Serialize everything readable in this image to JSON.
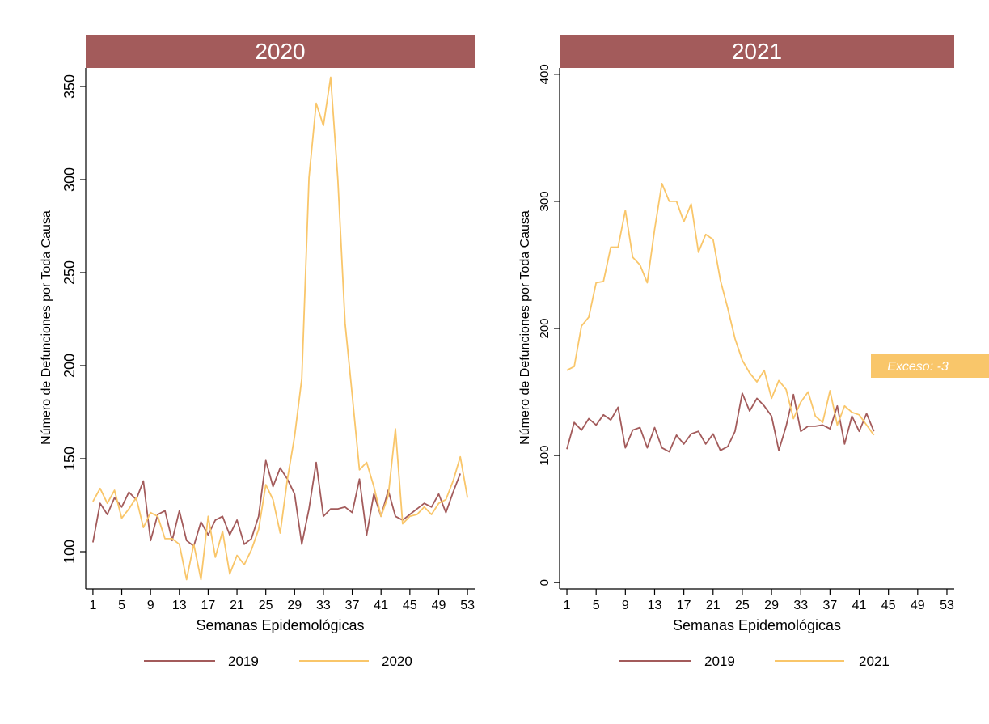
{
  "colors": {
    "banner": "#a35b5b",
    "series_2019": "#a35b5b",
    "series_current": "#f9c66a",
    "exceso_box": "#f9c66a",
    "banner_text": "#ffffff"
  },
  "chart_data": [
    {
      "type": "line",
      "title": "2020",
      "xlabel": "Semanas Epidemológicas",
      "ylabel": "Número de Defunciones por Toda Causa",
      "xlim": [
        0,
        54
      ],
      "ylim": [
        80,
        360
      ],
      "xticks": [
        1,
        5,
        9,
        13,
        17,
        21,
        25,
        29,
        33,
        37,
        41,
        45,
        49,
        53
      ],
      "yticks": [
        100,
        150,
        200,
        250,
        300,
        350
      ],
      "legend_position": "bottom",
      "series": [
        {
          "name": "2019",
          "color_key": "series_2019",
          "x": [
            1,
            2,
            3,
            4,
            5,
            6,
            7,
            8,
            9,
            10,
            11,
            12,
            13,
            14,
            15,
            16,
            17,
            18,
            19,
            20,
            21,
            22,
            23,
            24,
            25,
            26,
            27,
            28,
            29,
            30,
            31,
            32,
            33,
            34,
            35,
            36,
            37,
            38,
            39,
            40,
            41,
            42,
            43,
            44,
            45,
            46,
            47,
            48,
            49,
            50,
            51,
            52
          ],
          "values": [
            105,
            126,
            120,
            129,
            124,
            132,
            128,
            138,
            106,
            120,
            122,
            106,
            122,
            106,
            103,
            116,
            109,
            117,
            119,
            109,
            117,
            104,
            107,
            119,
            149,
            135,
            145,
            139,
            131,
            104,
            123,
            148,
            119,
            123,
            123,
            124,
            121,
            139,
            109,
            131,
            119,
            133,
            119,
            117,
            120,
            123,
            126,
            124,
            131,
            121,
            132,
            142
          ]
        },
        {
          "name": "2020",
          "color_key": "series_current",
          "x": [
            1,
            2,
            3,
            4,
            5,
            6,
            7,
            8,
            9,
            10,
            11,
            12,
            13,
            14,
            15,
            16,
            17,
            18,
            19,
            20,
            21,
            22,
            23,
            24,
            25,
            26,
            27,
            28,
            29,
            30,
            31,
            32,
            33,
            34,
            35,
            36,
            37,
            38,
            39,
            40,
            41,
            42,
            43,
            44,
            45,
            46,
            47,
            48,
            49,
            50,
            51,
            52,
            53
          ],
          "values": [
            127,
            134,
            126,
            133,
            118,
            123,
            129,
            113,
            121,
            119,
            107,
            107,
            104,
            85,
            104,
            85,
            119,
            97,
            111,
            88,
            98,
            93,
            101,
            112,
            136,
            128,
            110,
            139,
            162,
            193,
            301,
            341,
            329,
            355,
            300,
            223,
            184,
            144,
            148,
            135,
            119,
            130,
            166,
            115,
            119,
            120,
            124,
            120,
            126,
            128,
            138,
            151,
            129
          ]
        }
      ]
    },
    {
      "type": "line",
      "title": "2021",
      "xlabel": "Semanas Epidemológicas",
      "ylabel": "Número de Defunciones por Toda Causa",
      "xlim": [
        0,
        54
      ],
      "ylim": [
        -5,
        405
      ],
      "xticks": [
        1,
        5,
        9,
        13,
        17,
        21,
        25,
        29,
        33,
        37,
        41,
        45,
        49,
        53
      ],
      "yticks": [
        0,
        100,
        200,
        300,
        400
      ],
      "legend_position": "bottom",
      "annotation": "Exceso: -3",
      "series": [
        {
          "name": "2019",
          "color_key": "series_2019",
          "x": [
            1,
            2,
            3,
            4,
            5,
            6,
            7,
            8,
            9,
            10,
            11,
            12,
            13,
            14,
            15,
            16,
            17,
            18,
            19,
            20,
            21,
            22,
            23,
            24,
            25,
            26,
            27,
            28,
            29,
            30,
            31,
            32,
            33,
            34,
            35,
            36,
            37,
            38,
            39,
            40,
            41,
            42,
            43
          ],
          "values": [
            105,
            126,
            120,
            129,
            124,
            132,
            128,
            138,
            106,
            120,
            122,
            106,
            122,
            106,
            103,
            116,
            109,
            117,
            119,
            109,
            117,
            104,
            107,
            119,
            149,
            135,
            145,
            139,
            131,
            104,
            123,
            148,
            119,
            123,
            123,
            124,
            121,
            139,
            109,
            131,
            119,
            133,
            119
          ]
        },
        {
          "name": "2021",
          "color_key": "series_current",
          "x": [
            1,
            2,
            3,
            4,
            5,
            6,
            7,
            8,
            9,
            10,
            11,
            12,
            13,
            14,
            15,
            16,
            17,
            18,
            19,
            20,
            21,
            22,
            23,
            24,
            25,
            26,
            27,
            28,
            29,
            30,
            31,
            32,
            33,
            34,
            35,
            36,
            37,
            38,
            39,
            40,
            41,
            42,
            43
          ],
          "values": [
            167,
            170,
            202,
            209,
            236,
            237,
            264,
            264,
            293,
            256,
            250,
            236,
            278,
            314,
            300,
            300,
            284,
            298,
            260,
            274,
            270,
            238,
            216,
            192,
            175,
            165,
            158,
            167,
            145,
            159,
            152,
            129,
            142,
            150,
            131,
            126,
            151,
            124,
            139,
            134,
            132,
            124,
            116
          ]
        }
      ]
    }
  ]
}
